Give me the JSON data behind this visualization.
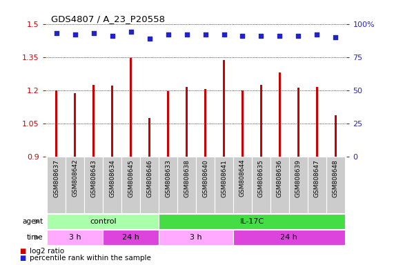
{
  "title": "GDS4807 / A_23_P20558",
  "samples": [
    "GSM808637",
    "GSM808642",
    "GSM808643",
    "GSM808634",
    "GSM808645",
    "GSM808646",
    "GSM808633",
    "GSM808638",
    "GSM808640",
    "GSM808641",
    "GSM808644",
    "GSM808635",
    "GSM808636",
    "GSM808639",
    "GSM808647",
    "GSM808648"
  ],
  "log2_ratio": [
    1.2,
    1.185,
    1.225,
    1.22,
    1.345,
    1.075,
    1.195,
    1.215,
    1.205,
    1.335,
    1.2,
    1.225,
    1.28,
    1.21,
    1.215,
    1.085
  ],
  "percentile": [
    93,
    92,
    93,
    91,
    94,
    89,
    92,
    92,
    92,
    92,
    91,
    91,
    91,
    91,
    92,
    90
  ],
  "bar_color": "#cc0000",
  "dot_color": "#2222cc",
  "ylim_left": [
    0.9,
    1.5
  ],
  "ylim_right": [
    0,
    100
  ],
  "yticks_left": [
    0.9,
    1.05,
    1.2,
    1.35,
    1.5
  ],
  "yticks_right": [
    0,
    25,
    50,
    75,
    100
  ],
  "ytick_labels_left": [
    "0.9",
    "1.05",
    "1.2",
    "1.35",
    "1.5"
  ],
  "ytick_labels_right": [
    "0",
    "25",
    "50",
    "75",
    "100%"
  ],
  "hlines": [
    1.05,
    1.2,
    1.35
  ],
  "agent_groups": [
    {
      "label": "control",
      "start": 0,
      "end": 6,
      "color": "#aaffaa"
    },
    {
      "label": "IL-17C",
      "start": 6,
      "end": 16,
      "color": "#44dd44"
    }
  ],
  "time_groups": [
    {
      "label": "3 h",
      "start": 0,
      "end": 3,
      "color": "#ffaaff"
    },
    {
      "label": "24 h",
      "start": 3,
      "end": 6,
      "color": "#dd44dd"
    },
    {
      "label": "3 h",
      "start": 6,
      "end": 10,
      "color": "#ffaaff"
    },
    {
      "label": "24 h",
      "start": 10,
      "end": 16,
      "color": "#dd44dd"
    }
  ],
  "legend_items": [
    {
      "label": "log2 ratio",
      "color": "#cc0000"
    },
    {
      "label": "percentile rank within the sample",
      "color": "#2222cc"
    }
  ],
  "background_color": "#ffffff",
  "tick_bg_color": "#cccccc"
}
